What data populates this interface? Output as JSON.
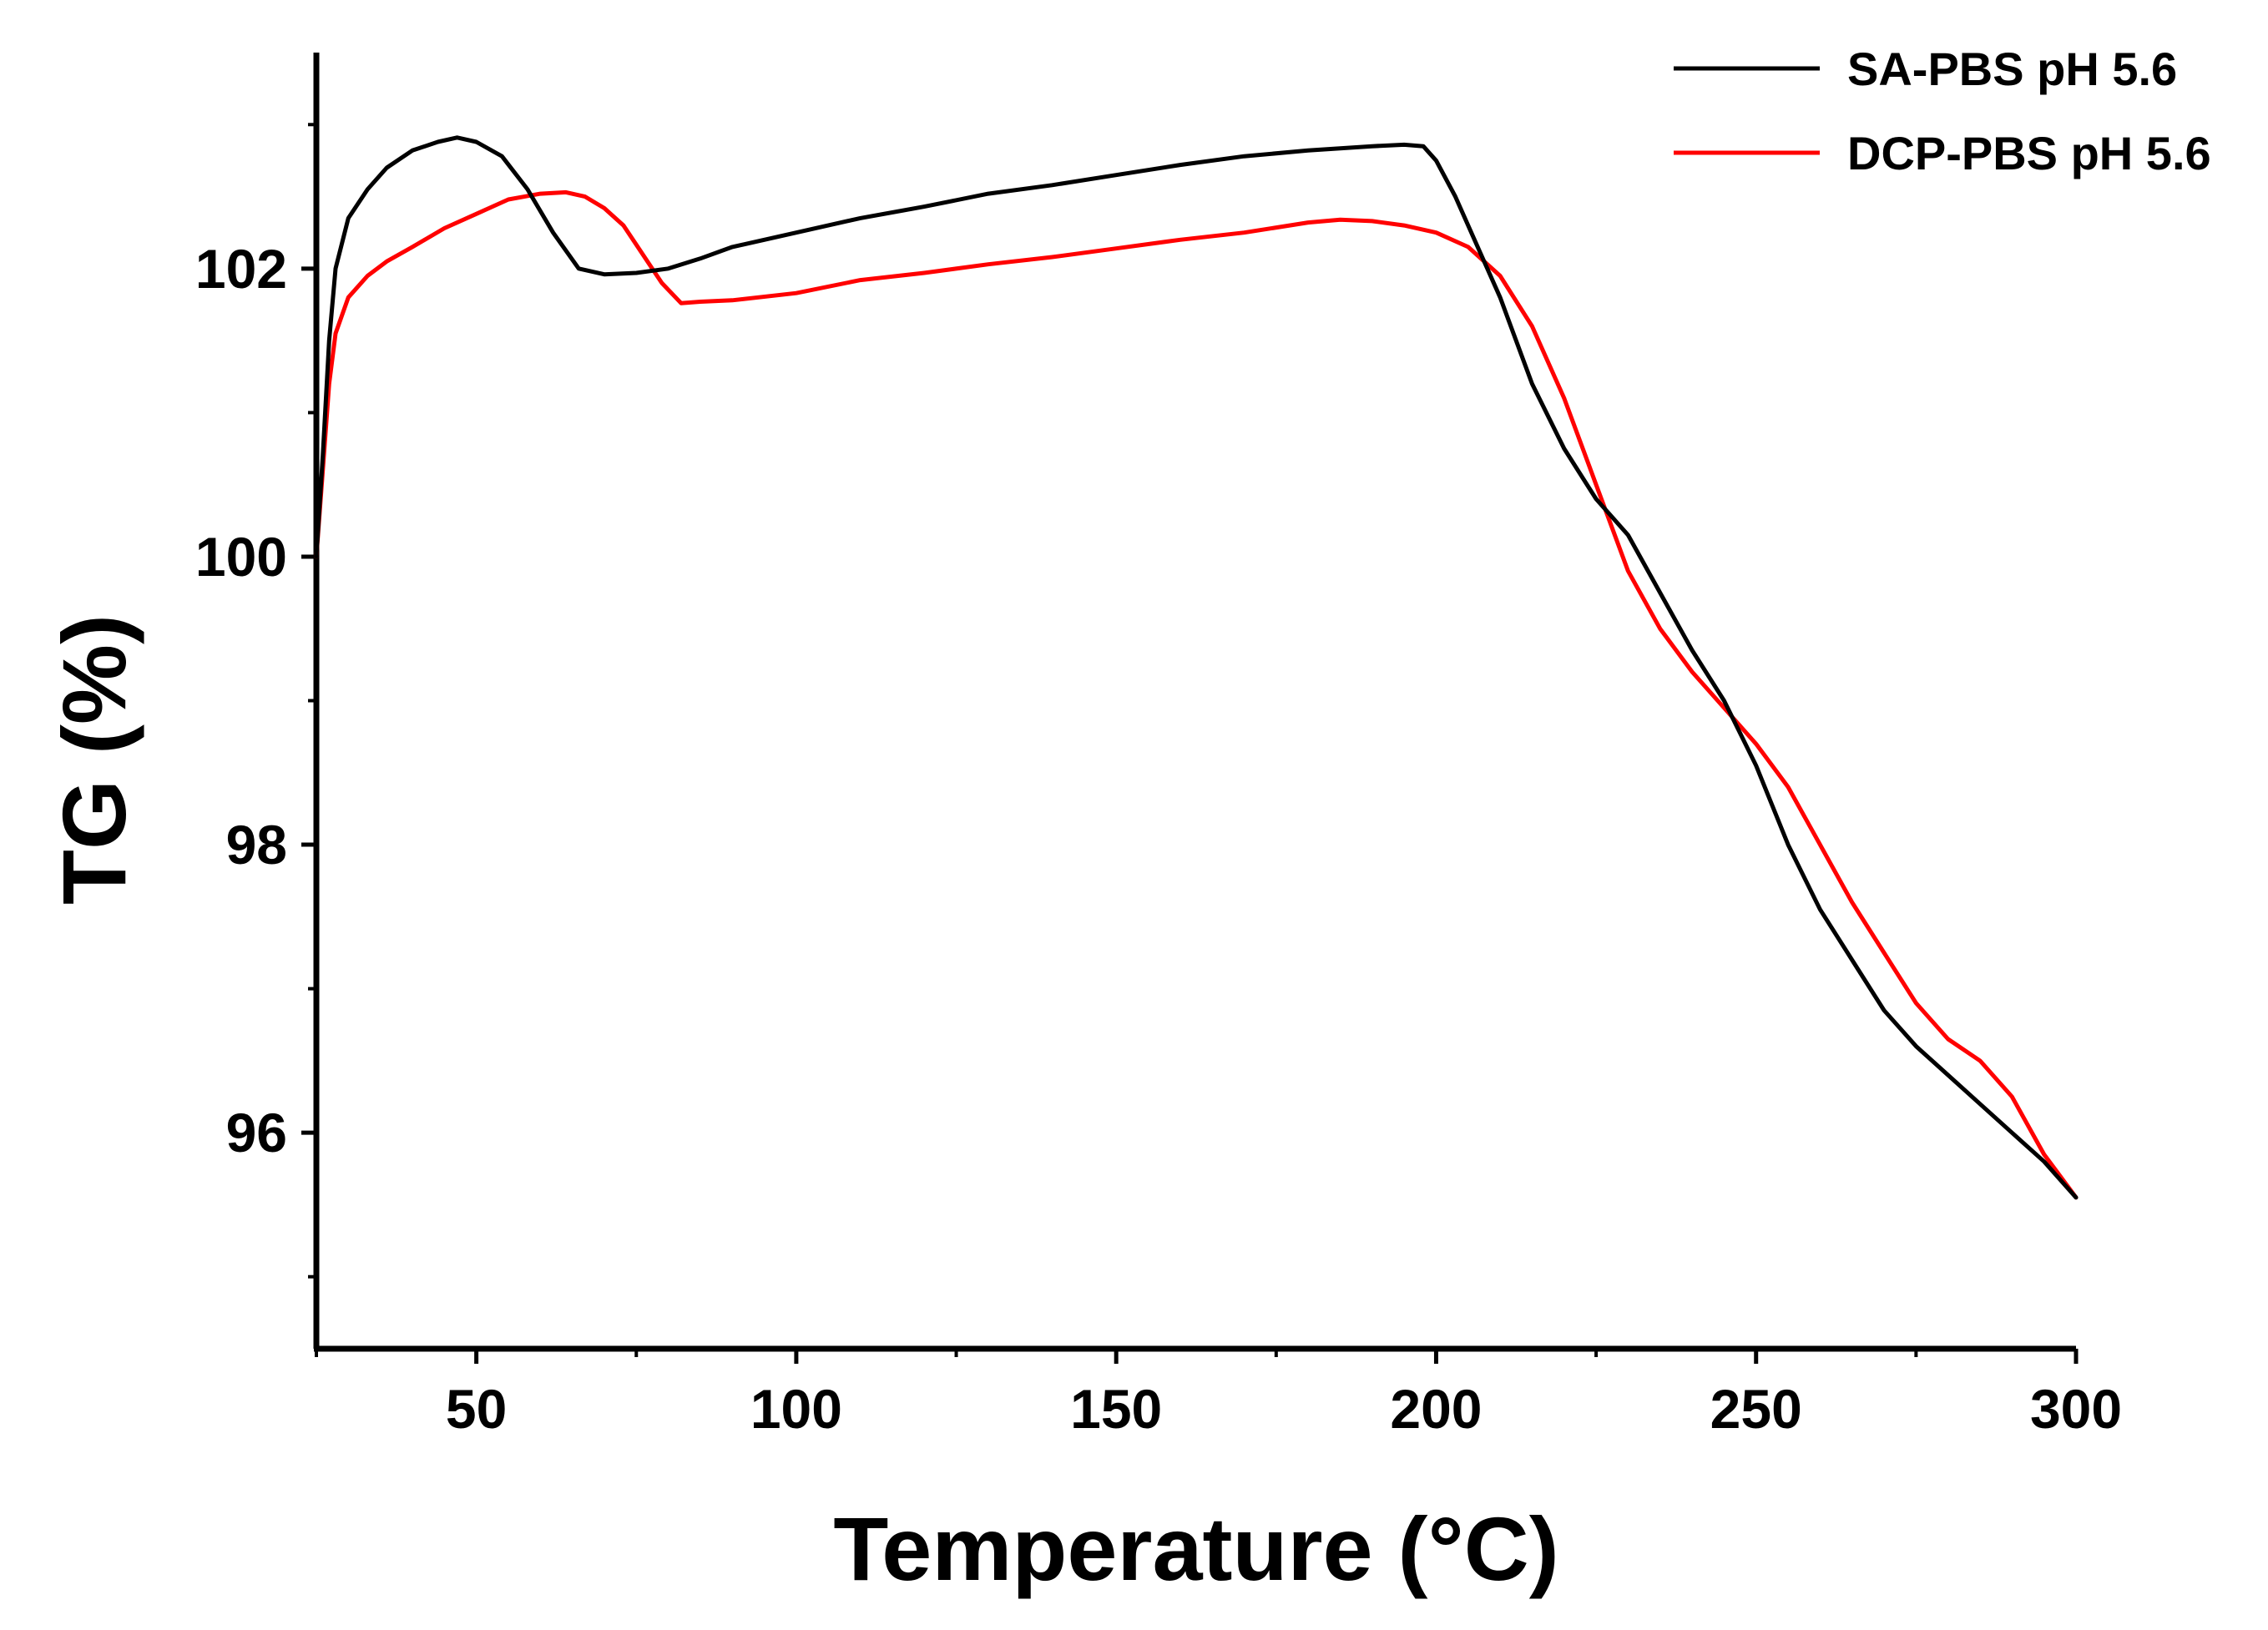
{
  "chart_data": {
    "type": "line",
    "title": "",
    "xlabel": "Temperature (°C)",
    "ylabel": "TG (%)",
    "xlim": [
      25,
      300
    ],
    "ylim": [
      94.5,
      103.5
    ],
    "x_major_ticks": [
      50,
      100,
      150,
      200,
      250,
      300
    ],
    "x_minor_ticks": [
      25,
      75,
      125,
      175,
      225,
      275
    ],
    "y_major_ticks": [
      96,
      98,
      100,
      102
    ],
    "y_minor_ticks": [
      95,
      97,
      99,
      101,
      103
    ],
    "x_tick_labels": [
      "50",
      "100",
      "150",
      "200",
      "250",
      "300"
    ],
    "y_tick_labels": [
      "96",
      "98",
      "100",
      "102"
    ],
    "grid": false,
    "legend_position": "top-right",
    "series": [
      {
        "name": "SA-PBS pH 5.6",
        "color": "#000000",
        "x": [
          25,
          26,
          27,
          28,
          30,
          33,
          36,
          40,
          44,
          47,
          50,
          54,
          58,
          62,
          66,
          70,
          75,
          80,
          85,
          90,
          100,
          110,
          120,
          130,
          140,
          150,
          160,
          170,
          180,
          190,
          195,
          198,
          200,
          203,
          206,
          210,
          215,
          220,
          225,
          230,
          235,
          240,
          245,
          250,
          255,
          260,
          265,
          270,
          275,
          280,
          285,
          290,
          295,
          300
        ],
        "y": [
          100.0,
          100.7,
          101.5,
          102.0,
          102.35,
          102.55,
          102.7,
          102.82,
          102.88,
          102.91,
          102.88,
          102.78,
          102.55,
          102.25,
          102.0,
          101.96,
          101.97,
          102.0,
          102.07,
          102.15,
          102.25,
          102.35,
          102.43,
          102.52,
          102.58,
          102.65,
          102.72,
          102.78,
          102.82,
          102.85,
          102.86,
          102.85,
          102.75,
          102.5,
          102.2,
          101.8,
          101.2,
          100.75,
          100.4,
          100.15,
          99.75,
          99.35,
          99.0,
          98.55,
          98.0,
          97.55,
          97.2,
          96.85,
          96.6,
          96.4,
          96.2,
          96.0,
          95.8,
          95.55
        ]
      },
      {
        "name": "DCP-PBS pH 5.6",
        "color": "#ff0000",
        "x": [
          25,
          26,
          27,
          28,
          30,
          33,
          36,
          40,
          45,
          50,
          55,
          60,
          64,
          67,
          70,
          73,
          76,
          79,
          82,
          85,
          90,
          100,
          110,
          120,
          130,
          140,
          150,
          160,
          170,
          180,
          185,
          190,
          195,
          200,
          205,
          210,
          215,
          220,
          225,
          230,
          235,
          240,
          245,
          250,
          255,
          260,
          265,
          270,
          275,
          280,
          285,
          290,
          295,
          300
        ],
        "y": [
          100.0,
          100.6,
          101.2,
          101.55,
          101.8,
          101.95,
          102.05,
          102.15,
          102.28,
          102.38,
          102.48,
          102.52,
          102.53,
          102.5,
          102.42,
          102.3,
          102.1,
          101.9,
          101.76,
          101.77,
          101.78,
          101.83,
          101.92,
          101.97,
          102.03,
          102.08,
          102.14,
          102.2,
          102.25,
          102.32,
          102.34,
          102.33,
          102.3,
          102.25,
          102.15,
          101.95,
          101.6,
          101.1,
          100.5,
          99.9,
          99.5,
          99.2,
          98.95,
          98.7,
          98.4,
          98.0,
          97.6,
          97.25,
          96.9,
          96.65,
          96.5,
          96.25,
          95.85,
          95.55
        ]
      }
    ]
  }
}
